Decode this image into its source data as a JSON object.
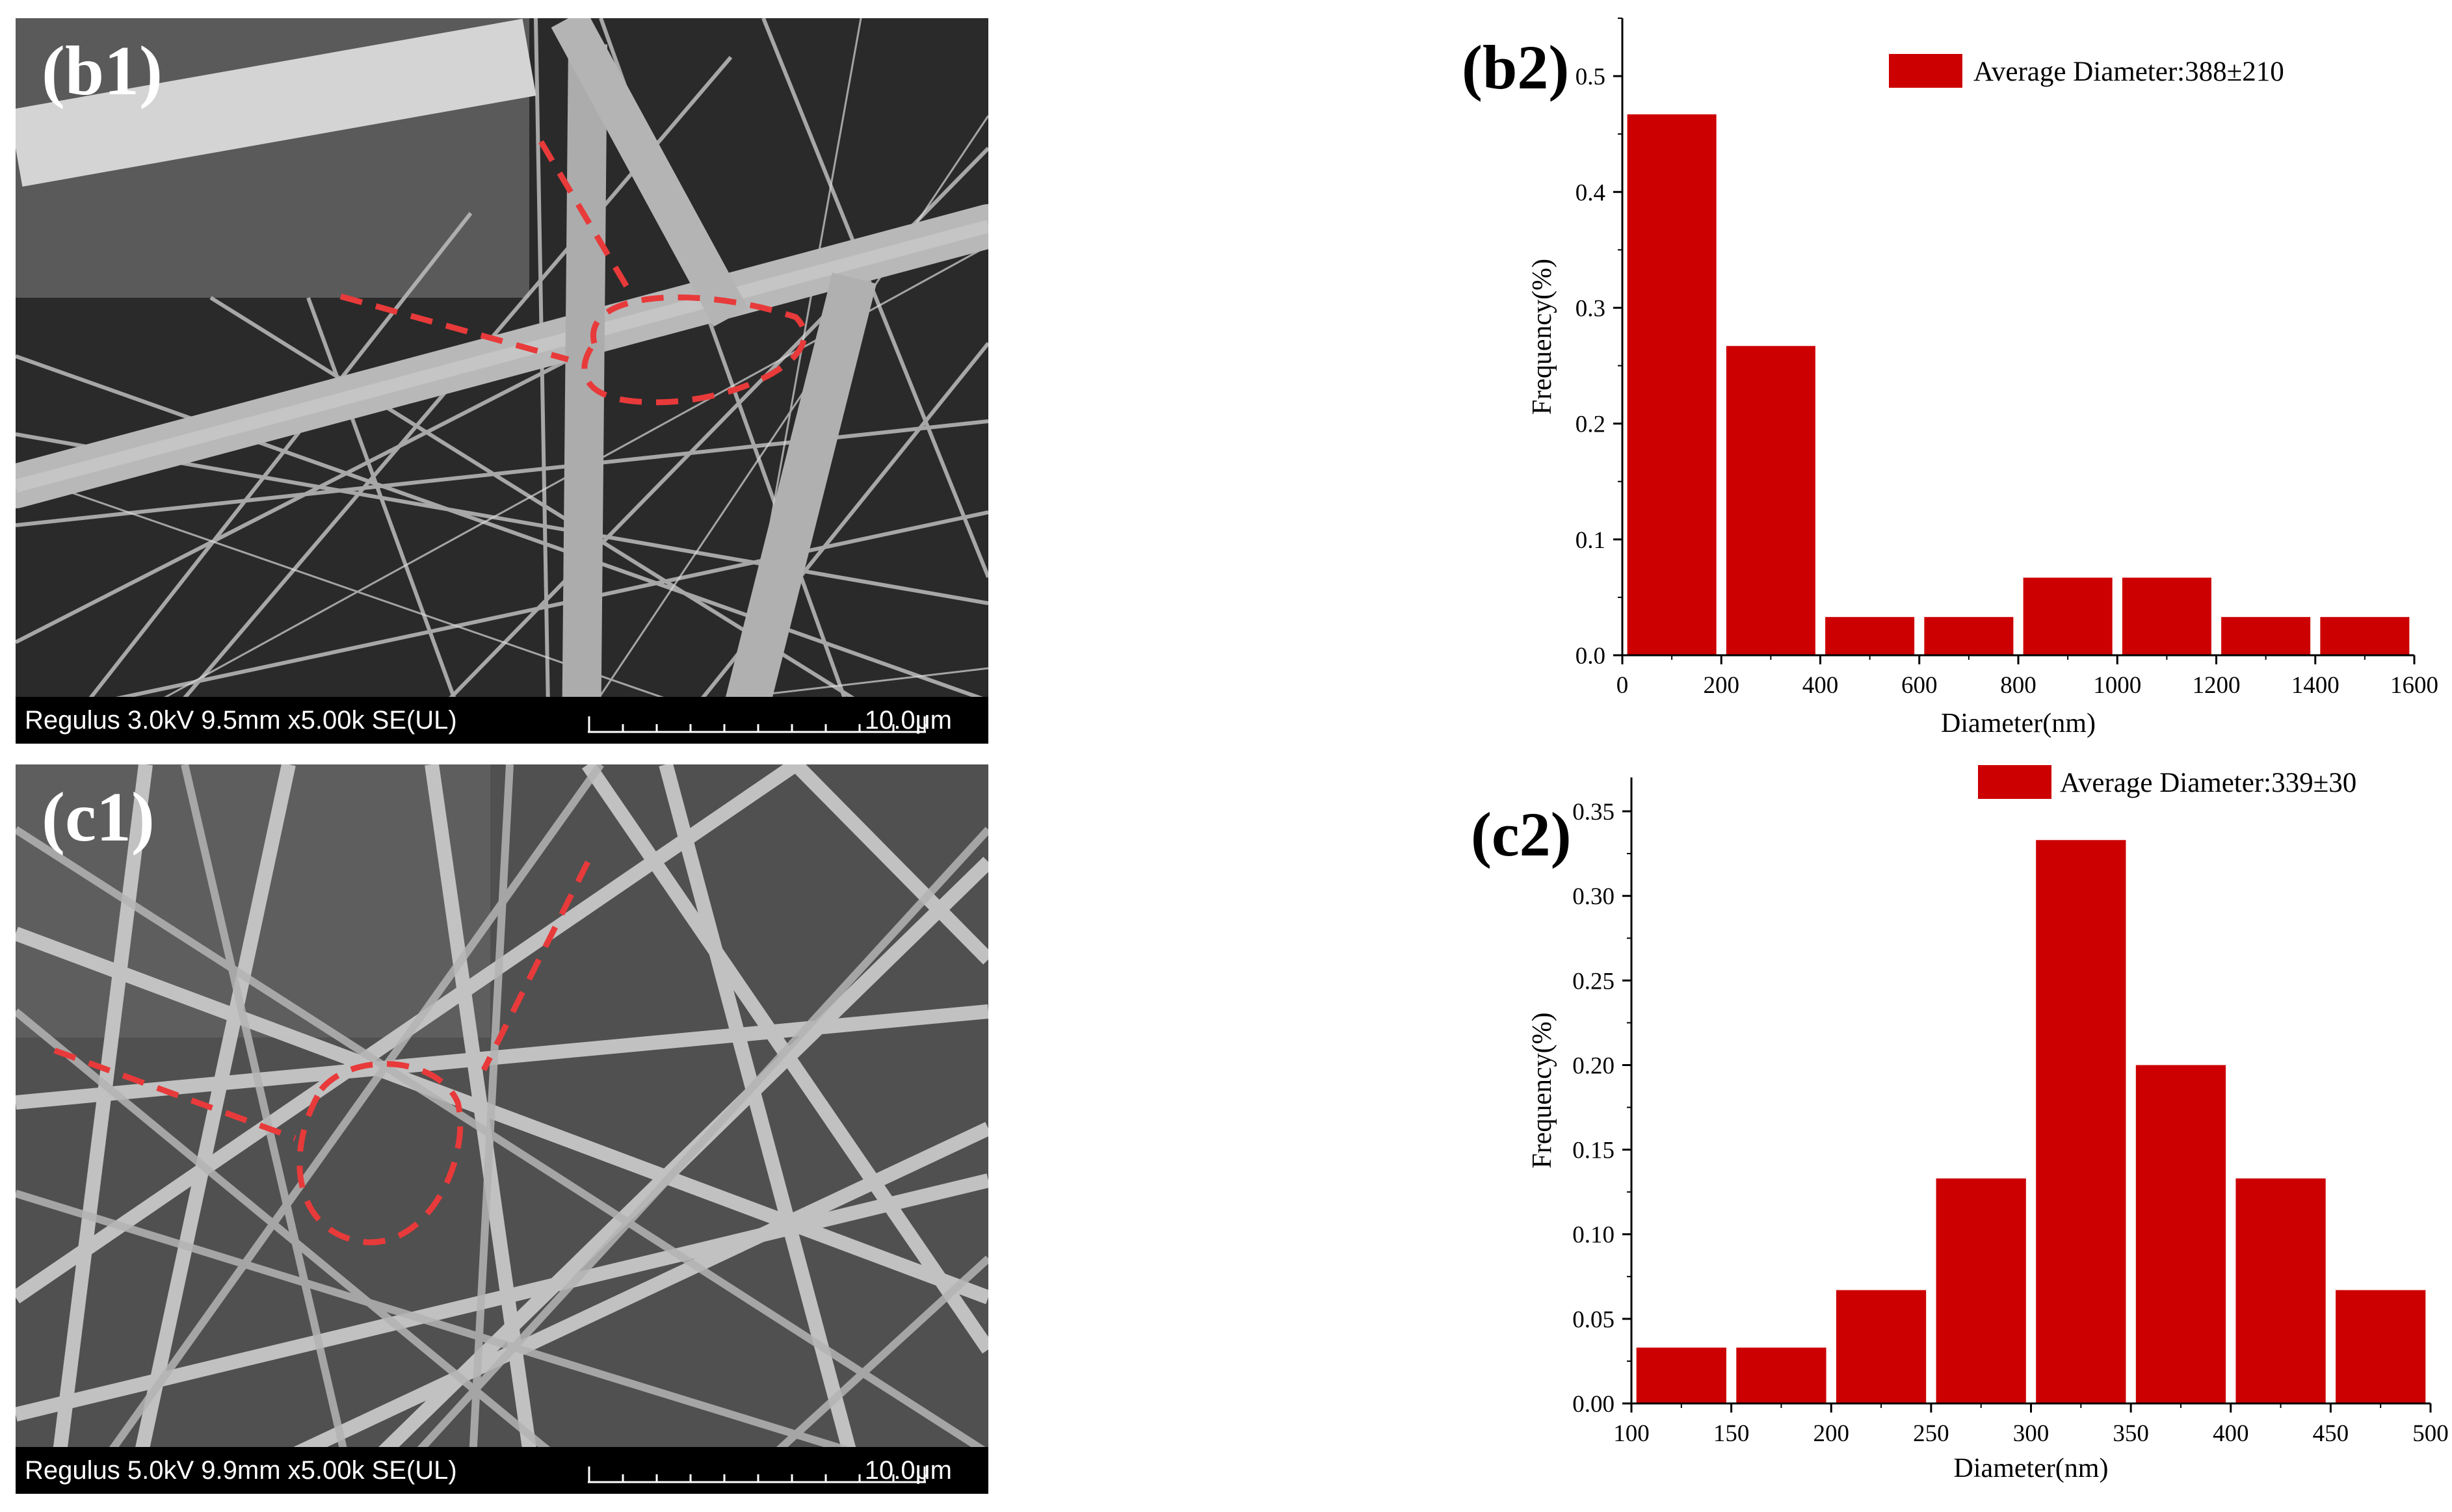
{
  "panels": {
    "b1": {
      "label": "(b1)",
      "caption": "Regulus 3.0kV 9.5mm x5.00k SE(UL)",
      "scale": "10.0μm"
    },
    "c1": {
      "label": "(c1)",
      "caption": "Regulus 5.0kV 9.9mm x5.00k SE(UL)",
      "scale": "10.0μm"
    }
  },
  "colors": {
    "bar": "#cc0000",
    "annotation": "#e83a3a",
    "sem_b_bg": "#2a2a2a",
    "sem_c_bg": "#505050"
  },
  "chart_data": [
    {
      "id": "b2",
      "panel_label": "(b2)",
      "type": "bar",
      "title": "",
      "legend": "Average Diameter:388±210",
      "legend_position": "top-right",
      "xlabel": "Diameter(nm)",
      "ylabel": "Frequency(%)",
      "xlim": [
        0,
        1600
      ],
      "ylim": [
        0,
        0.55
      ],
      "xticks": [
        0,
        200,
        400,
        600,
        800,
        1000,
        1200,
        1400,
        1600
      ],
      "yticks": [
        0.0,
        0.1,
        0.2,
        0.3,
        0.4,
        0.5
      ],
      "ytick_labels": [
        "0.0",
        "0.1",
        "0.2",
        "0.3",
        "0.4",
        "0.5"
      ],
      "bin_width": 200,
      "bins": [
        0,
        200,
        400,
        600,
        800,
        1000,
        1200,
        1400
      ],
      "values": [
        0.467,
        0.267,
        0.033,
        0.033,
        0.067,
        0.067,
        0.033,
        0.033
      ]
    },
    {
      "id": "c2",
      "panel_label": "(c2)",
      "type": "bar",
      "title": "",
      "legend": "Average Diameter:339±30",
      "legend_position": "top-right",
      "xlabel": "Diameter(nm)",
      "ylabel": "Frequency(%)",
      "xlim": [
        100,
        500
      ],
      "ylim": [
        0,
        0.37
      ],
      "xticks": [
        100,
        150,
        200,
        250,
        300,
        350,
        400,
        450,
        500
      ],
      "yticks": [
        0.0,
        0.05,
        0.1,
        0.15,
        0.2,
        0.25,
        0.3,
        0.35
      ],
      "ytick_labels": [
        "0.00",
        "0.05",
        "0.10",
        "0.15",
        "0.20",
        "0.25",
        "0.30",
        "0.35"
      ],
      "bin_width": 50,
      "bins": [
        100,
        150,
        200,
        250,
        300,
        350,
        400,
        450
      ],
      "values": [
        0.033,
        0.033,
        0.067,
        0.133,
        0.333,
        0.2,
        0.133,
        0.067
      ]
    }
  ]
}
